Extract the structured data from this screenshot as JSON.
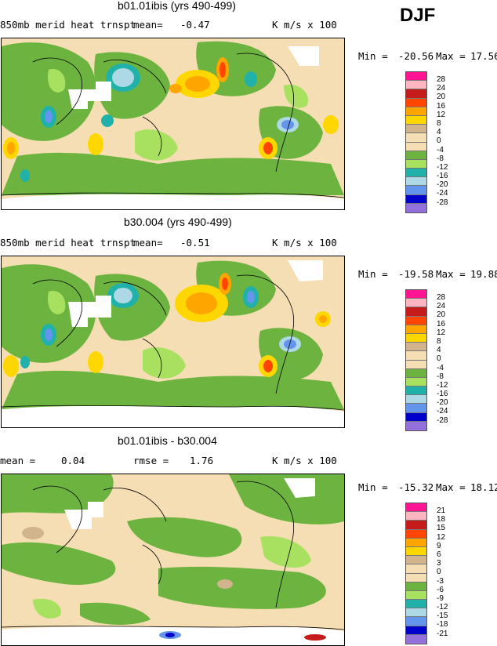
{
  "season": "DJF",
  "palette": {
    "p28": "#ff1493",
    "p24": "#ffb6c1",
    "p20": "#c51b1b",
    "p16": "#ff4500",
    "p12": "#ffa500",
    "p8": "#ffd700",
    "p4": "#d2b48c",
    "p0": "#f5deb3",
    "n0": "#f5deb3",
    "n4": "#6db33f",
    "n8": "#a8e05f",
    "n12": "#20b2aa",
    "n16": "#add8e6",
    "n20": "#6495ed",
    "n24": "#0000cd",
    "n28": "#9370db"
  },
  "panels": [
    {
      "title": "b01.01ibis (yrs 490-499)",
      "variable": "850mb merid heat trnspt",
      "mean_label": "mean=",
      "mean_value": "-0.47",
      "units": "K m/s x 100",
      "min_label": "Min =",
      "min_value": "-20.56",
      "max_label": "Max =",
      "max_value": "17.56",
      "legend_labels": [
        "28",
        "24",
        "20",
        "16",
        "12",
        "8",
        "4",
        "0",
        "-4",
        "-8",
        "-12",
        "-16",
        "-20",
        "-24",
        "-28"
      ]
    },
    {
      "title": "b30.004 (yrs 490-499)",
      "variable": "850mb merid heat trnspt",
      "mean_label": "mean=",
      "mean_value": "-0.51",
      "units": "K m/s x 100",
      "min_label": "Min =",
      "min_value": "-19.58",
      "max_label": "Max =",
      "max_value": "19.88",
      "legend_labels": [
        "28",
        "24",
        "20",
        "16",
        "12",
        "8",
        "4",
        "0",
        "-4",
        "-8",
        "-12",
        "-16",
        "-20",
        "-24",
        "-28"
      ]
    },
    {
      "title": "b01.01ibis - b30.004",
      "mean_label": "mean =",
      "mean_value": "0.04",
      "rmse_label": "rmse =",
      "rmse_value": "1.76",
      "units": "K m/s x 100",
      "min_label": "Min =",
      "min_value": "-15.32",
      "max_label": "Max =",
      "max_value": "18.12",
      "legend_labels": [
        "21",
        "18",
        "15",
        "12",
        "9",
        "6",
        "3",
        "0",
        "-3",
        "-6",
        "-9",
        "-12",
        "-15",
        "-18",
        "-21"
      ]
    }
  ]
}
